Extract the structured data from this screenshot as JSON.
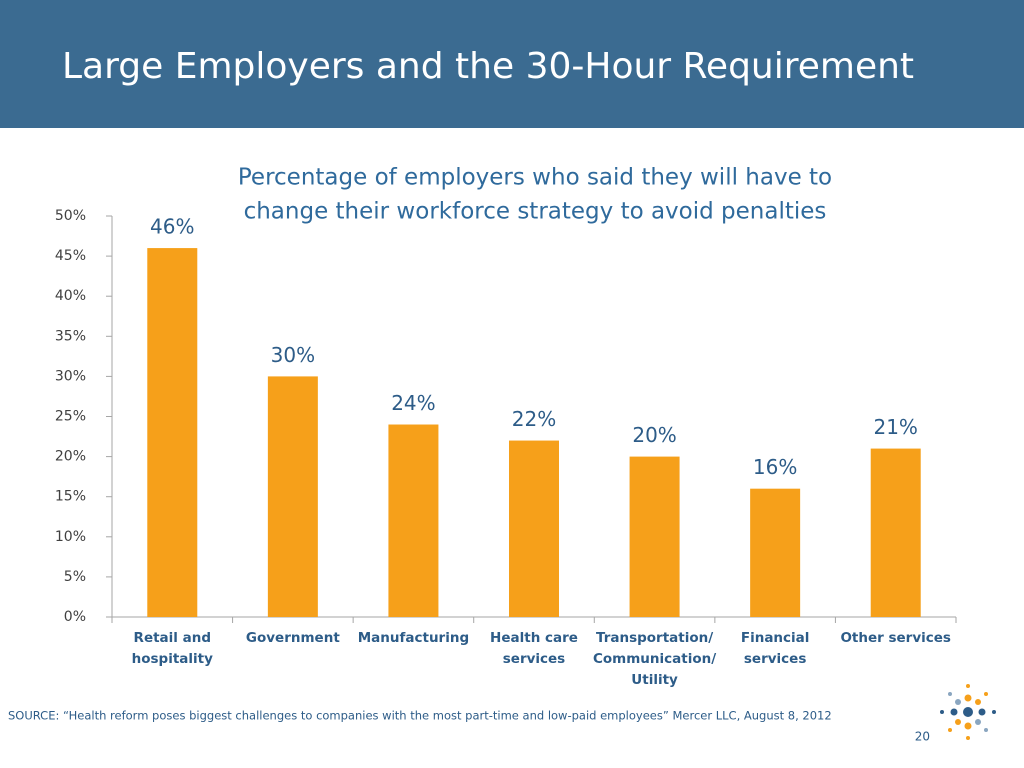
{
  "header": {
    "title": "Large Employers and the 30-Hour Requirement"
  },
  "chart_data": {
    "type": "bar",
    "title": [
      "Percentage of employers who said they will have to",
      "change their workforce strategy to avoid penalties"
    ],
    "categories": [
      [
        "Retail and",
        "hospitality"
      ],
      [
        "Government"
      ],
      [
        "Manufacturing"
      ],
      [
        "Health care",
        "services"
      ],
      [
        "Transportation/",
        "Communication/",
        "Utility"
      ],
      [
        "Financial",
        "services"
      ],
      [
        "Other services"
      ]
    ],
    "values": [
      46,
      30,
      24,
      22,
      20,
      16,
      21
    ],
    "value_labels": [
      "46%",
      "30%",
      "24%",
      "22%",
      "20%",
      "16%",
      "21%"
    ],
    "color": "#f6a01a",
    "ylim": [
      0,
      50
    ],
    "yticks": [
      {
        "value": 0,
        "label": "0%"
      },
      {
        "value": 5,
        "label": "5%"
      },
      {
        "value": 10,
        "label": "10%"
      },
      {
        "value": 15,
        "label": "15%"
      },
      {
        "value": 20,
        "label": "20%"
      },
      {
        "value": 25,
        "label": "25%"
      },
      {
        "value": 30,
        "label": "30%"
      },
      {
        "value": 35,
        "label": "35%"
      },
      {
        "value": 40,
        "label": "40%"
      },
      {
        "value": 45,
        "label": "45%"
      },
      {
        "value": 50,
        "label": "50%"
      }
    ],
    "grid": false
  },
  "footer": {
    "source": "SOURCE: “Health reform poses biggest challenges to companies with the most part-time and low-paid employees” Mercer LLC, August 8, 2012",
    "page": "20"
  }
}
